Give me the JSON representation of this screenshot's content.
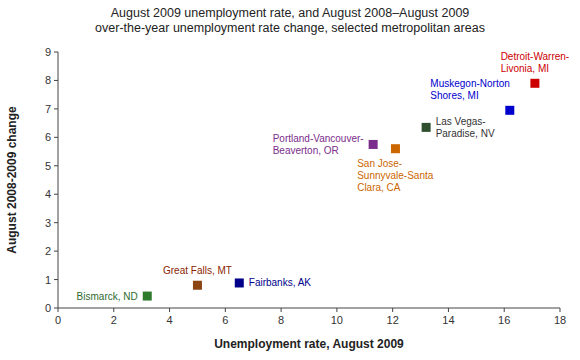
{
  "chart_data": {
    "type": "scatter",
    "title": "August 2009 unemployment rate, and August 2008–August 2009\nover-the-year unemployment rate change, selected metropolitan areas",
    "x_label": "Unemployment rate, August 2009",
    "y_label": "August 2008-2009 change",
    "x": [
      5.0,
      3.2,
      6.5,
      11.3,
      12.1,
      13.2,
      16.2,
      17.1
    ],
    "values": [
      0.8,
      0.42,
      0.88,
      5.75,
      5.6,
      6.35,
      6.95,
      7.9
    ],
    "colors": [
      "#8B4513",
      "#2E7B2E",
      "#00008B",
      "#7B2D8B",
      "#CC6600",
      "#2F4F2F",
      "#0000CD",
      "#CC0000"
    ],
    "annotations": [
      {
        "text": "Great Falls, MT",
        "color": "#8B2500"
      },
      {
        "text": "Bismarck, ND",
        "color": "#2E6B2E"
      },
      {
        "text": "Fairbanks, AK",
        "color": "#00008B"
      },
      {
        "text": "Portland-Vancouver-\nBeaverton, OR",
        "color": "#7B2D8B"
      },
      {
        "text": "San Jose-\nSunnyvale-Santa\nClara, CA",
        "color": "#CC6600"
      },
      {
        "text": "Las Vegas-\nParadise, NV",
        "color": "#333333"
      },
      {
        "text": "Muskegon-Norton\nShores, MI",
        "color": "#0000CD"
      },
      {
        "text": "Detroit-Warren-\nLivonia, MI",
        "color": "#CC0000"
      }
    ],
    "marker": "square",
    "xlim": [
      0,
      18
    ],
    "ylim": [
      0,
      9
    ],
    "xticks": [
      0,
      2,
      4,
      6,
      8,
      10,
      12,
      14,
      16,
      18
    ],
    "yticks": [
      0,
      1,
      2,
      3,
      4,
      5,
      6,
      7,
      8,
      9
    ],
    "grid": false
  }
}
